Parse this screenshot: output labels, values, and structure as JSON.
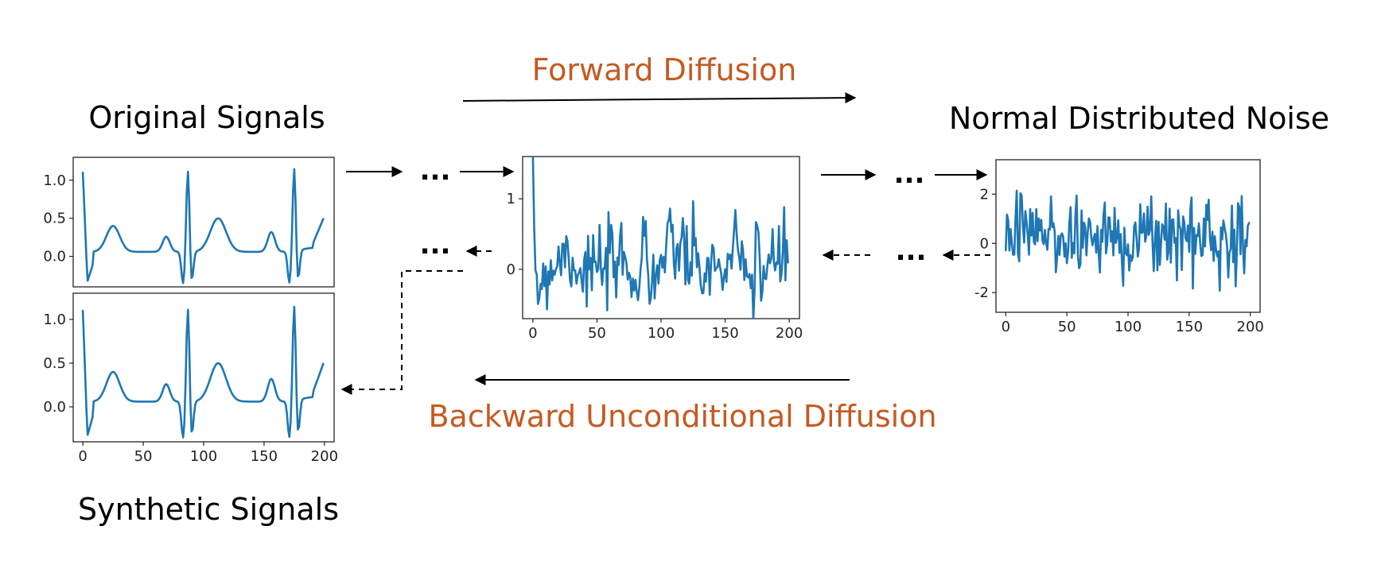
{
  "labels": {
    "forward": "Forward Diffusion",
    "backward": "Backward Unconditional Diffusion",
    "original": "Original Signals",
    "synthetic": "Synthetic Signals",
    "noise": "Normal Distributed Noise",
    "ellipsis": "..."
  },
  "colors": {
    "accent": "#C55A21",
    "signal": "#1f77b4",
    "arrow": "#000000"
  },
  "chart_data": [
    {
      "name": "original",
      "type": "line",
      "xlim": [
        -8,
        208
      ],
      "ylim": [
        -0.4,
        1.3
      ],
      "yticks": [
        "0.0",
        "0.5",
        "1.0"
      ],
      "xticks": [],
      "xtick_values": [],
      "ytick_values": [
        0,
        0.5,
        1.0
      ],
      "series": [
        {
          "kind": "ecg"
        }
      ]
    },
    {
      "name": "synthetic",
      "type": "line",
      "xlim": [
        -8,
        208
      ],
      "ylim": [
        -0.4,
        1.3
      ],
      "yticks": [
        "0.0",
        "0.5",
        "1.0"
      ],
      "xticks": [
        "0",
        "50",
        "100",
        "150",
        "200"
      ],
      "xtick_values": [
        0,
        50,
        100,
        150,
        200
      ],
      "ytick_values": [
        0,
        0.5,
        1.0
      ],
      "series": [
        {
          "kind": "ecg"
        }
      ]
    },
    {
      "name": "intermediate",
      "type": "line",
      "xlim": [
        -8,
        208
      ],
      "ylim": [
        -0.7,
        1.6
      ],
      "yticks": [
        "0",
        "1"
      ],
      "xticks": [
        "0",
        "50",
        "100",
        "150",
        "200"
      ],
      "xtick_values": [
        0,
        50,
        100,
        150,
        200
      ],
      "ytick_values": [
        0,
        1
      ],
      "series": [
        {
          "kind": "noisy-ecg"
        }
      ]
    },
    {
      "name": "noise",
      "type": "line",
      "xlim": [
        -8,
        208
      ],
      "ylim": [
        -2.8,
        3.4
      ],
      "yticks": [
        "2",
        "0",
        "-2"
      ],
      "xticks": [
        "0",
        "50",
        "100",
        "150",
        "200"
      ],
      "xtick_values": [
        0,
        50,
        100,
        150,
        200
      ],
      "ytick_values": [
        2,
        0,
        -2
      ],
      "series": [
        {
          "kind": "noise"
        }
      ]
    }
  ]
}
